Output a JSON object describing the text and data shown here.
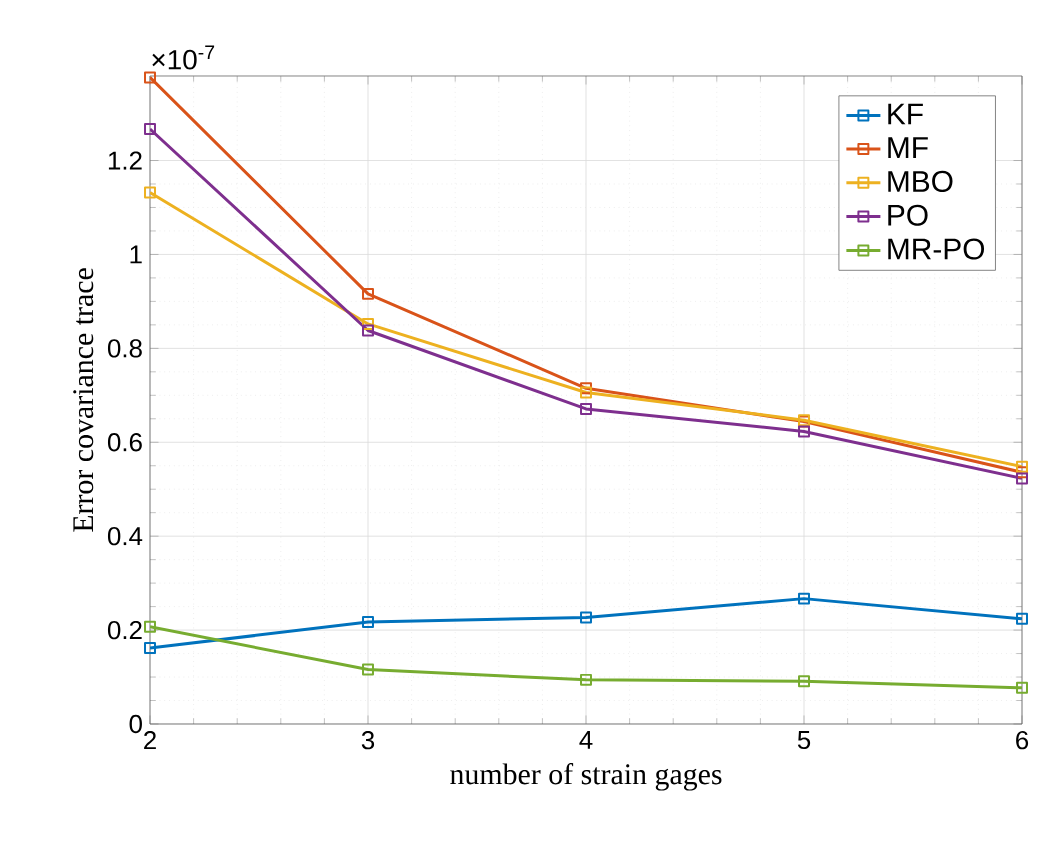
{
  "chart_data": {
    "type": "line",
    "xlabel": "number of strain gages",
    "ylabel": "Error covariance trace",
    "annotations": [
      "×10$^{-7}$"
    ],
    "x": [
      2,
      3,
      4,
      5,
      6
    ],
    "series": [
      {
        "name": "KF",
        "color": "#0072bd",
        "values": [
          0.162,
          0.217,
          0.227,
          0.267,
          0.224
        ]
      },
      {
        "name": "MF",
        "color": "#d95319",
        "values": [
          1.377,
          0.916,
          0.715,
          0.644,
          0.536
        ]
      },
      {
        "name": "MBO",
        "color": "#edb120",
        "values": [
          1.132,
          0.852,
          0.706,
          0.647,
          0.548
        ]
      },
      {
        "name": "PO",
        "color": "#7e2f8e",
        "values": [
          1.267,
          0.838,
          0.671,
          0.623,
          0.523
        ]
      },
      {
        "name": "MR-PO",
        "color": "#77ac30",
        "values": [
          0.207,
          0.116,
          0.094,
          0.091,
          0.077
        ]
      }
    ],
    "xlim": [
      2,
      6
    ],
    "ylim": [
      0,
      1.38
    ],
    "xticks": [
      2,
      3,
      4,
      5,
      6
    ],
    "yticks": [
      0,
      0.2,
      0.4,
      0.6,
      0.8,
      1,
      1.2
    ],
    "grid": true,
    "legend": "top right",
    "marker": "square",
    "line_style": "solid"
  }
}
